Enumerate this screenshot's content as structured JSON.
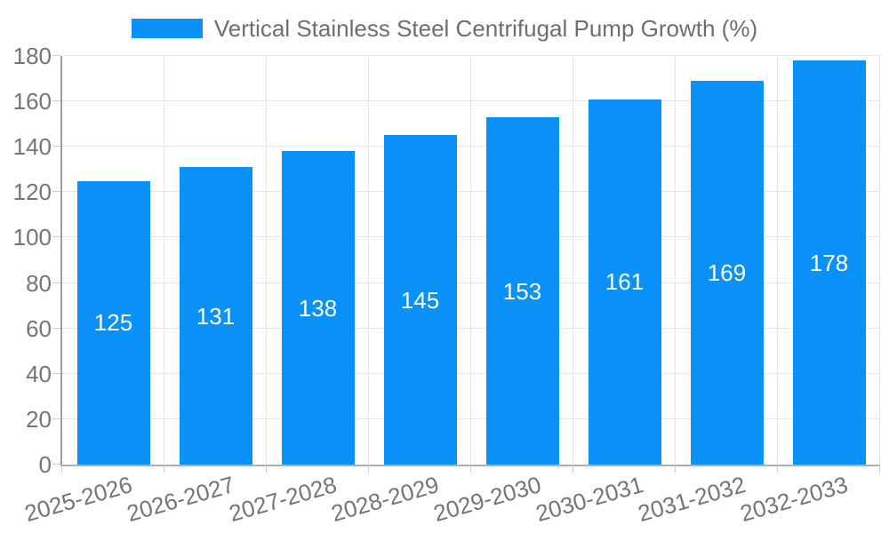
{
  "legend": {
    "label": "Vertical Stainless Steel Centrifugal Pump Growth (%)"
  },
  "chart_data": {
    "type": "bar",
    "title": "Vertical Stainless Steel Centrifugal Pump Growth (%)",
    "categories": [
      "2025-2026",
      "2026-2027",
      "2027-2028",
      "2028-2029",
      "2029-2030",
      "2030-2031",
      "2031-2032",
      "2032-2033"
    ],
    "values": [
      125,
      131,
      138,
      145,
      153,
      161,
      169,
      178
    ],
    "xlabel": "",
    "ylabel": "",
    "ylim": [
      0,
      180
    ],
    "yticks": [
      0,
      20,
      40,
      60,
      80,
      100,
      120,
      140,
      160,
      180
    ],
    "grid": true,
    "legend_position": "top-center",
    "value_labels_shown": true,
    "value_label_position": "middle-of-bar",
    "xtick_rotation_deg": -16,
    "colors": {
      "bar": "#0a91f7",
      "value_label": "#ffffff",
      "axis_label": "#757575",
      "legend_text": "#6e6e6e",
      "grid": "#e6e6e6",
      "axis_line": "#9e9e9e",
      "tick": "#cccccc"
    }
  }
}
